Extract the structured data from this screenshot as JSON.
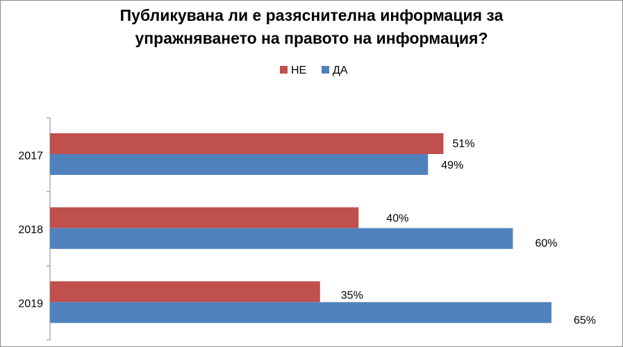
{
  "chart_data": {
    "type": "bar",
    "orientation": "horizontal",
    "title_lines": [
      "Публикувана ли е разяснителна информация за",
      "упражняването на правото на информация?"
    ],
    "categories": [
      "2017",
      "2018",
      "2019"
    ],
    "series": [
      {
        "name": "НЕ",
        "color": "#C0504D",
        "values": [
          51,
          40,
          35
        ],
        "labels": [
          "51%",
          "40%",
          "35%"
        ]
      },
      {
        "name": "ДА",
        "color": "#4F81BD",
        "values": [
          49,
          60,
          65
        ],
        "labels": [
          "49%",
          "60%",
          "65%"
        ]
      }
    ],
    "value_unit": "%",
    "xlim": [
      0,
      85
    ],
    "grid": false,
    "legend_position": "top",
    "value_axis_shown": false
  }
}
